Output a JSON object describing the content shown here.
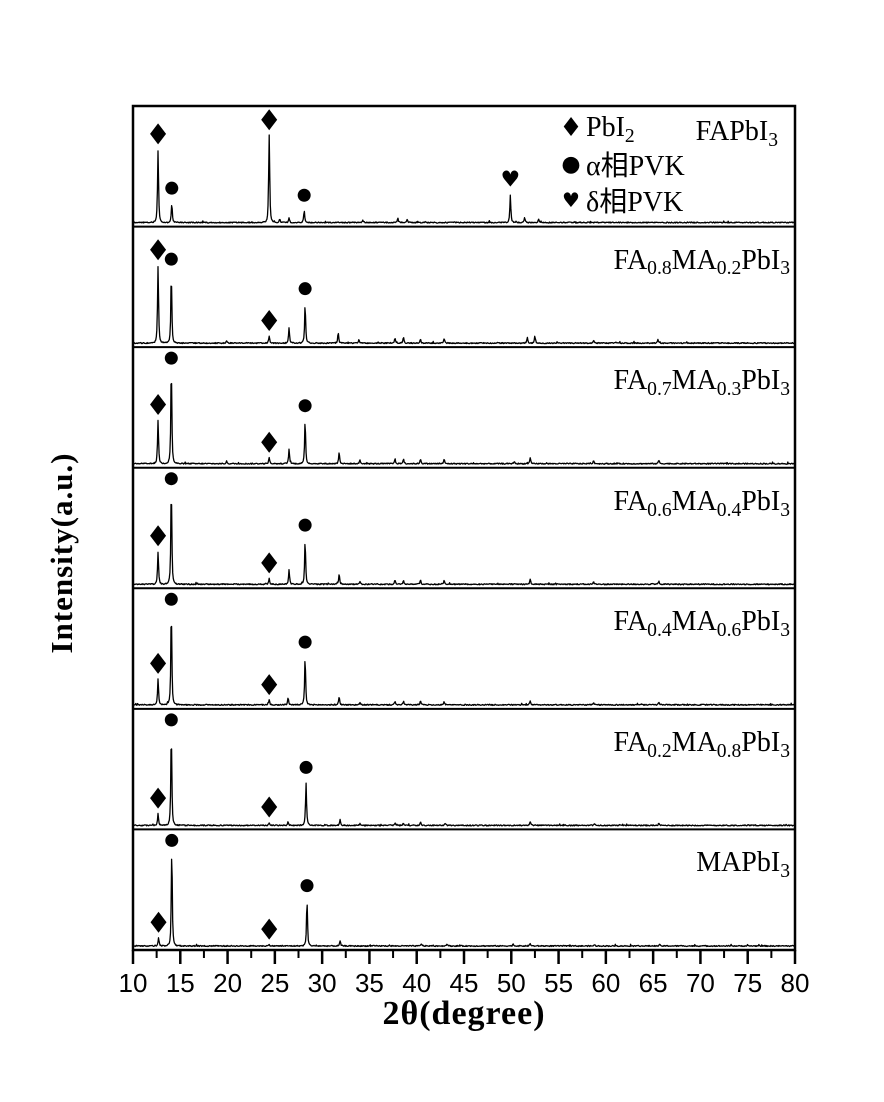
{
  "figure": {
    "background": "#ffffff",
    "line_color": "#000000"
  },
  "chart_data": {
    "type": "line",
    "subtype": "stacked-xrd-patterns",
    "title": "",
    "xlabel": "2θ(degree)",
    "ylabel": "Intensity(a.u.)",
    "grid": false,
    "x_axis": {
      "range": [
        10,
        80
      ],
      "major_tick_step": 5,
      "minor_tick_step": 2.5,
      "tick_labels": [
        "10",
        "15",
        "20",
        "25",
        "30",
        "35",
        "40",
        "45",
        "50",
        "55",
        "60",
        "65",
        "70",
        "75",
        "80"
      ]
    },
    "y_axis": {
      "per_panel_range": [
        0,
        1
      ],
      "units": "a.u."
    },
    "marker_glyphs": {
      "diamond": "♦",
      "circle": "●",
      "heart": "♥"
    },
    "legend": {
      "position": "top-right-inside",
      "entries": [
        {
          "marker": "diamond",
          "label_segments": [
            [
              "PbI"
            ],
            [
              "2",
              "sub"
            ]
          ]
        },
        {
          "marker": "circle",
          "label_segments": [
            [
              "α相PVK"
            ]
          ]
        },
        {
          "marker": "heart",
          "label_segments": [
            [
              "δ相PVK"
            ]
          ]
        }
      ]
    },
    "panels": [
      {
        "name": "FAPbI3",
        "label_segments": [
          [
            "FAPbI"
          ],
          [
            "3",
            "sub"
          ]
        ],
        "label_placement": "beside-legend",
        "peaks": [
          [
            12.65,
            0.62
          ],
          [
            14.1,
            0.16
          ],
          [
            24.4,
            0.74
          ],
          [
            25.5,
            0.03
          ],
          [
            26.5,
            0.04
          ],
          [
            28.1,
            0.1
          ],
          [
            34.3,
            0.02
          ],
          [
            38.0,
            0.035
          ],
          [
            39.0,
            0.03
          ],
          [
            49.9,
            0.23
          ],
          [
            51.4,
            0.045
          ],
          [
            52.9,
            0.03
          ]
        ],
        "markers": [
          [
            "diamond",
            12.65
          ],
          [
            "circle",
            14.1
          ],
          [
            "diamond",
            24.4
          ],
          [
            "circle",
            28.1
          ],
          [
            "heart",
            49.9
          ]
        ]
      },
      {
        "name": "FA0.8MA0.2PbI3",
        "label_segments": [
          [
            "FA"
          ],
          [
            "0.8",
            "sub"
          ],
          [
            "MA"
          ],
          [
            "0.2",
            "sub"
          ],
          [
            "PbI"
          ],
          [
            "3",
            "sub"
          ]
        ],
        "peaks": [
          [
            12.65,
            0.66
          ],
          [
            14.05,
            0.58
          ],
          [
            19.9,
            0.02
          ],
          [
            24.4,
            0.06
          ],
          [
            26.5,
            0.13
          ],
          [
            28.2,
            0.33
          ],
          [
            31.7,
            0.09
          ],
          [
            33.9,
            0.03
          ],
          [
            37.7,
            0.045
          ],
          [
            38.6,
            0.05
          ],
          [
            40.4,
            0.03
          ],
          [
            42.9,
            0.04
          ],
          [
            51.7,
            0.05
          ],
          [
            52.5,
            0.06
          ],
          [
            58.7,
            0.02
          ],
          [
            65.5,
            0.03
          ]
        ],
        "markers": [
          [
            "diamond",
            12.65
          ],
          [
            "circle",
            14.05
          ],
          [
            "diamond",
            24.4
          ],
          [
            "circle",
            28.2
          ]
        ]
      },
      {
        "name": "FA0.7MA0.3PbI3",
        "label_segments": [
          [
            "FA"
          ],
          [
            "0.7",
            "sub"
          ],
          [
            "MA"
          ],
          [
            "0.3",
            "sub"
          ],
          [
            "PbI"
          ],
          [
            "3",
            "sub"
          ]
        ],
        "peaks": [
          [
            12.65,
            0.37
          ],
          [
            14.05,
            0.82
          ],
          [
            19.9,
            0.02
          ],
          [
            24.4,
            0.05
          ],
          [
            26.5,
            0.12
          ],
          [
            28.2,
            0.36
          ],
          [
            31.8,
            0.1
          ],
          [
            34.0,
            0.03
          ],
          [
            37.7,
            0.04
          ],
          [
            38.6,
            0.04
          ],
          [
            40.4,
            0.04
          ],
          [
            42.9,
            0.035
          ],
          [
            50.3,
            0.02
          ],
          [
            52.0,
            0.045
          ],
          [
            58.7,
            0.025
          ],
          [
            65.6,
            0.03
          ]
        ],
        "markers": [
          [
            "diamond",
            12.65
          ],
          [
            "circle",
            14.05
          ],
          [
            "diamond",
            24.4
          ],
          [
            "circle",
            28.2
          ]
        ]
      },
      {
        "name": "FA0.6MA0.4PbI3",
        "label_segments": [
          [
            "FA"
          ],
          [
            "0.6",
            "sub"
          ],
          [
            "MA"
          ],
          [
            "0.4",
            "sub"
          ],
          [
            "PbI"
          ],
          [
            "3",
            "sub"
          ]
        ],
        "peaks": [
          [
            12.65,
            0.28
          ],
          [
            14.05,
            0.82
          ],
          [
            24.4,
            0.05
          ],
          [
            26.5,
            0.12
          ],
          [
            28.2,
            0.37
          ],
          [
            31.8,
            0.09
          ],
          [
            34.0,
            0.025
          ],
          [
            37.7,
            0.035
          ],
          [
            38.6,
            0.035
          ],
          [
            40.4,
            0.035
          ],
          [
            42.9,
            0.03
          ],
          [
            52.0,
            0.04
          ],
          [
            58.7,
            0.02
          ],
          [
            65.6,
            0.025
          ]
        ],
        "markers": [
          [
            "diamond",
            12.65
          ],
          [
            "circle",
            14.05
          ],
          [
            "diamond",
            24.4
          ],
          [
            "circle",
            28.2
          ]
        ]
      },
      {
        "name": "FA0.4MA0.6PbI3",
        "label_segments": [
          [
            "FA"
          ],
          [
            "0.4",
            "sub"
          ],
          [
            "MA"
          ],
          [
            "0.6",
            "sub"
          ],
          [
            "PbI"
          ],
          [
            "3",
            "sub"
          ]
        ],
        "peaks": [
          [
            12.65,
            0.22
          ],
          [
            14.05,
            0.8
          ],
          [
            24.4,
            0.04
          ],
          [
            26.4,
            0.06
          ],
          [
            28.2,
            0.4
          ],
          [
            31.8,
            0.07
          ],
          [
            34.0,
            0.02
          ],
          [
            37.7,
            0.03
          ],
          [
            38.6,
            0.03
          ],
          [
            40.4,
            0.03
          ],
          [
            42.9,
            0.025
          ],
          [
            52.0,
            0.035
          ],
          [
            58.7,
            0.015
          ],
          [
            65.6,
            0.02
          ]
        ],
        "markers": [
          [
            "diamond",
            12.65
          ],
          [
            "circle",
            14.05
          ],
          [
            "diamond",
            24.4
          ],
          [
            "circle",
            28.2
          ]
        ]
      },
      {
        "name": "FA0.2MA0.8PbI3",
        "label_segments": [
          [
            "FA"
          ],
          [
            "0.2",
            "sub"
          ],
          [
            "MA"
          ],
          [
            "0.8",
            "sub"
          ],
          [
            "PbI"
          ],
          [
            "3",
            "sub"
          ]
        ],
        "peaks": [
          [
            12.65,
            0.1
          ],
          [
            14.05,
            0.78
          ],
          [
            24.4,
            0.025
          ],
          [
            26.4,
            0.03
          ],
          [
            28.3,
            0.36
          ],
          [
            31.9,
            0.05
          ],
          [
            34.0,
            0.015
          ],
          [
            37.7,
            0.02
          ],
          [
            38.6,
            0.02
          ],
          [
            40.4,
            0.025
          ],
          [
            43.0,
            0.02
          ],
          [
            52.0,
            0.03
          ],
          [
            58.8,
            0.012
          ],
          [
            65.6,
            0.015
          ]
        ],
        "markers": [
          [
            "diamond",
            12.65
          ],
          [
            "circle",
            14.05
          ],
          [
            "diamond",
            24.4
          ],
          [
            "circle",
            28.3
          ]
        ]
      },
      {
        "name": "MAPbI3",
        "label_segments": [
          [
            "MAPbI"
          ],
          [
            "3",
            "sub"
          ]
        ],
        "peaks": [
          [
            12.7,
            0.07
          ],
          [
            14.1,
            0.8
          ],
          [
            24.4,
            0.012
          ],
          [
            28.4,
            0.38
          ],
          [
            31.9,
            0.04
          ],
          [
            40.5,
            0.02
          ],
          [
            43.2,
            0.02
          ],
          [
            50.2,
            0.015
          ],
          [
            52.0,
            0.02
          ],
          [
            58.8,
            0.01
          ],
          [
            65.7,
            0.01
          ]
        ],
        "markers": [
          [
            "diamond",
            12.7
          ],
          [
            "circle",
            14.1
          ],
          [
            "diamond",
            24.4
          ],
          [
            "circle",
            28.4
          ]
        ]
      }
    ]
  }
}
